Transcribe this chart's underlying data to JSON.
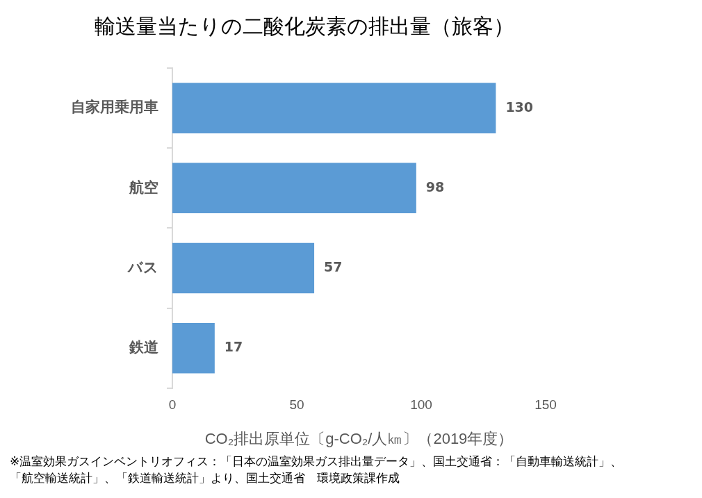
{
  "chart_data": {
    "type": "bar",
    "orientation": "horizontal",
    "title": "輸送量当たりの二酸化炭素の排出量（旅客）",
    "xlabel": "CO₂排出原単位〔g-CO₂/人㎞〕（2019年度）",
    "categories": [
      "自家用乗用車",
      "航空",
      "バス",
      "鉄道"
    ],
    "values": [
      130,
      98,
      57,
      17
    ],
    "color": "#5b9bd5",
    "xlim": [
      0,
      150
    ],
    "xticks": [
      0,
      50,
      100,
      150
    ],
    "grid": false,
    "legend": false,
    "data_labels": true,
    "annotations": [
      "※温室効果ガスインベントリオフィス：「日本の温室効果ガス排出量データ」、国土交通省：「自動車輸送統計」、",
      "「航空輸送統計」、「鉄道輸送統計」より、国土交通省　環境政策課作成"
    ]
  }
}
